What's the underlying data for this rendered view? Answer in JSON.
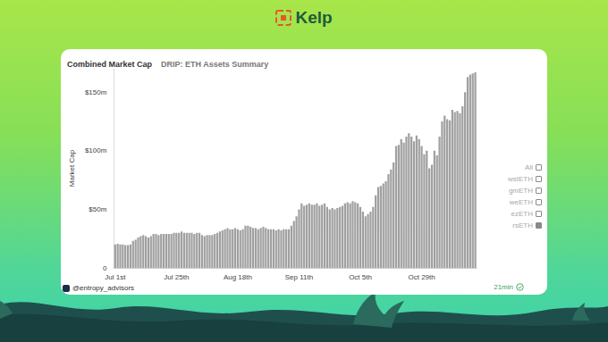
{
  "header": {
    "logo_text": "Kelp"
  },
  "chart_data": {
    "type": "bar",
    "title": "Combined Market Cap",
    "subtitle": "DRIP: ETH Assets Summary",
    "y_label": "Market Cap",
    "categories": [
      "Jul 1st",
      null,
      null,
      null,
      null,
      null,
      null,
      null,
      null,
      null,
      null,
      null,
      null,
      null,
      null,
      null,
      null,
      null,
      null,
      null,
      null,
      null,
      null,
      null,
      "Jul 25th",
      null,
      null,
      null,
      null,
      null,
      null,
      null,
      null,
      null,
      null,
      null,
      null,
      null,
      null,
      null,
      null,
      null,
      null,
      null,
      null,
      null,
      null,
      null,
      "Aug 18th",
      null,
      null,
      null,
      null,
      null,
      null,
      null,
      null,
      null,
      null,
      null,
      null,
      null,
      null,
      null,
      null,
      null,
      null,
      null,
      null,
      null,
      null,
      null,
      "Sep 11th",
      null,
      null,
      null,
      null,
      null,
      null,
      null,
      null,
      null,
      null,
      null,
      null,
      null,
      null,
      null,
      null,
      null,
      null,
      null,
      null,
      null,
      null,
      null,
      "Oct 5th",
      null,
      null,
      null,
      null,
      null,
      null,
      null,
      null,
      null,
      null,
      null,
      null,
      null,
      null,
      null,
      null,
      null,
      null,
      null,
      null,
      null,
      null,
      null,
      "Oct 29th",
      null,
      null,
      null,
      null,
      null,
      null,
      null,
      null,
      null,
      null,
      null,
      null,
      null,
      null,
      null,
      null,
      null,
      null,
      null,
      null,
      null
    ],
    "series": [
      {
        "name": "rsETH",
        "color": "#a0a0a0",
        "values": [
          20,
          20.5,
          20,
          20,
          19.5,
          19.5,
          20,
          23,
          24,
          26,
          27,
          28,
          27,
          26,
          27,
          29,
          29,
          28,
          29,
          29,
          29,
          29,
          29,
          30,
          30,
          30,
          31,
          30,
          30,
          30,
          30,
          29,
          30,
          30,
          28,
          27,
          28,
          28,
          28,
          29,
          30,
          31,
          32,
          33,
          34,
          33,
          33,
          34,
          33,
          32,
          33,
          36,
          36,
          35,
          34,
          34,
          33,
          34,
          35,
          34,
          33,
          33,
          33,
          32,
          33,
          32,
          33,
          33,
          33,
          36,
          40,
          44,
          50,
          55,
          53,
          54,
          55,
          54,
          54,
          55,
          53,
          54,
          55,
          52,
          50,
          51,
          50,
          51,
          52,
          53,
          55,
          56,
          55,
          57,
          56,
          55,
          52,
          48,
          44,
          46,
          48,
          52,
          62,
          69,
          70,
          72,
          74,
          80,
          84,
          90,
          104,
          105,
          110,
          107,
          112,
          115,
          112,
          108,
          113,
          110,
          104,
          97,
          100,
          85,
          88,
          100,
          96,
          112,
          125,
          130,
          127,
          126,
          135,
          133,
          134,
          132,
          138,
          150,
          163,
          165,
          166,
          167
        ]
      }
    ],
    "ylim": [
      0,
      170
    ],
    "yticks": [
      0,
      {
        "value": 50,
        "label": "$50m"
      },
      {
        "value": 100,
        "label": "$100m"
      },
      {
        "value": 150,
        "label": "$150m"
      }
    ],
    "grid": false
  },
  "filters": {
    "items": [
      "All",
      "wstETH",
      "gmETH",
      "weETH",
      "ezETH",
      "rsETH"
    ],
    "checked": [
      "rsETH"
    ]
  },
  "footer": {
    "source": "@entropy_advisors",
    "refresh": "21min"
  }
}
